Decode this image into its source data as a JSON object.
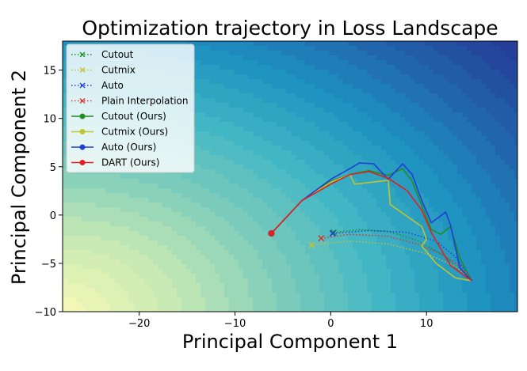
{
  "chart_data": {
    "type": "line",
    "title": "Optimization trajectory in Loss Landscape",
    "xlabel": "Principal Component 1",
    "ylabel": "Principal Component 2",
    "xlim": [
      -28,
      19.5
    ],
    "ylim": [
      -10,
      18
    ],
    "xticks": [
      -20,
      -10,
      0,
      10
    ],
    "yticks": [
      -10,
      -5,
      0,
      5,
      10,
      15
    ],
    "grid": false,
    "legend_position": "top-left",
    "background": {
      "type": "contour",
      "colormap": [
        "#f2f7b6",
        "#c6e9b4",
        "#7fcdbb",
        "#41b6c4",
        "#1d91c0",
        "#225ea8",
        "#253494"
      ],
      "low_corner": [
        -28,
        -10
      ],
      "high_corner": [
        19.5,
        18
      ]
    },
    "series": [
      {
        "name": "Cutout",
        "color": "#228b22",
        "style": "dotted",
        "marker": "x",
        "x": [
          0.3,
          3,
          6,
          9,
          12,
          14.2
        ],
        "y": [
          -1.8,
          -1.5,
          -1.7,
          -2.6,
          -4.3,
          -6.5
        ]
      },
      {
        "name": "Cutmix",
        "color": "#c2c232",
        "style": "dotted",
        "marker": "x",
        "x": [
          -2,
          2,
          6,
          10,
          13,
          14.8
        ],
        "y": [
          -3.1,
          -2.7,
          -3.0,
          -4.0,
          -5.3,
          -6.9
        ]
      },
      {
        "name": "Auto",
        "color": "#1f3fd8",
        "style": "dotted",
        "marker": "x",
        "x": [
          0.2,
          4,
          8,
          11,
          13,
          14.8
        ],
        "y": [
          -1.9,
          -1.6,
          -1.8,
          -2.7,
          -4.3,
          -6.8
        ]
      },
      {
        "name": "Plain Interpolation",
        "color": "#e0302a",
        "style": "dotted",
        "marker": "x",
        "x": [
          -1,
          2,
          6,
          9,
          11.5,
          13.5,
          14.8
        ],
        "y": [
          -2.4,
          -2.0,
          -2.2,
          -3.0,
          -4.0,
          -5.3,
          -6.8
        ]
      },
      {
        "name": "Cutout (Ours)",
        "color": "#228b22",
        "style": "solid",
        "marker": "o",
        "x": [
          -6.2,
          -3,
          0,
          2,
          4,
          6,
          7.5,
          8.5,
          9.5,
          10.5,
          11.5,
          12.5,
          13.5,
          14.7
        ],
        "y": [
          -1.9,
          1.5,
          3.5,
          4.2,
          4.6,
          4.1,
          4.8,
          3.5,
          1.0,
          -1.5,
          -2.0,
          -1.2,
          -4.5,
          -6.8
        ]
      },
      {
        "name": "Cutmix (Ours)",
        "color": "#c2c232",
        "style": "solid",
        "marker": "o",
        "x": [
          -6.2,
          -3,
          0,
          2,
          2.5,
          6,
          6.2,
          9.5,
          10,
          9.5,
          11,
          13,
          14.7
        ],
        "y": [
          -1.9,
          1.5,
          3.4,
          4.2,
          3.2,
          3.6,
          1.1,
          -1.2,
          -2.5,
          -3.2,
          -5.0,
          -6.5,
          -6.8
        ]
      },
      {
        "name": "Auto (Ours)",
        "color": "#1f3fd8",
        "style": "solid",
        "marker": "o",
        "x": [
          -6.2,
          -3,
          0,
          2,
          3,
          4.5,
          6,
          7.5,
          8.5,
          9.5,
          10.5,
          12,
          12.5,
          13.5,
          14.7
        ],
        "y": [
          -1.9,
          1.5,
          3.7,
          4.8,
          5.4,
          5.3,
          3.7,
          5.3,
          4.2,
          1.5,
          -0.8,
          0.3,
          -1.0,
          -5.5,
          -6.8
        ]
      },
      {
        "name": "DART (Ours)",
        "color": "#e02020",
        "style": "solid",
        "marker": "o",
        "x": [
          -6.2,
          -3,
          0,
          2,
          4,
          6,
          8,
          9.5,
          10.5,
          11.5,
          12.5,
          14.7
        ],
        "y": [
          -1.9,
          1.5,
          3.2,
          4.2,
          4.5,
          3.8,
          2.5,
          0.5,
          -1.8,
          -3.5,
          -5.2,
          -6.8
        ]
      }
    ]
  }
}
